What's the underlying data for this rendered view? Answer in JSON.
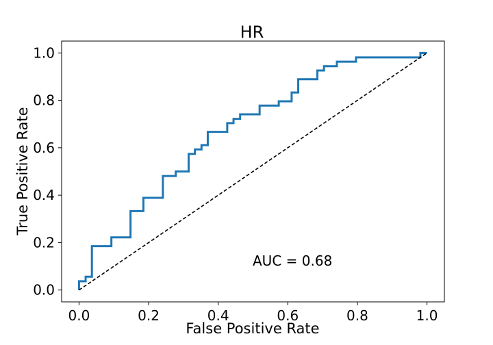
{
  "chart_data": {
    "type": "line",
    "title": "HR",
    "xlabel": "False Positive Rate",
    "ylabel": "True Positive Rate",
    "xlim": [
      -0.05,
      1.05
    ],
    "ylim": [
      -0.05,
      1.05
    ],
    "xticks": [
      0.0,
      0.2,
      0.4,
      0.6,
      0.8,
      1.0
    ],
    "xtick_labels": [
      "0.0",
      "0.2",
      "0.4",
      "0.6",
      "0.8",
      "1.0"
    ],
    "yticks": [
      0.0,
      0.2,
      0.4,
      0.6,
      0.8,
      1.0
    ],
    "ytick_labels": [
      "0.0",
      "0.2",
      "0.4",
      "0.6",
      "0.8",
      "1.0"
    ],
    "grid": false,
    "annotation": {
      "text": "AUC = 0.68",
      "x": 0.5,
      "y": 0.1
    },
    "series": [
      {
        "style": "step",
        "color": "#1f77b4",
        "x": [
          0.0,
          0.0,
          0.019,
          0.019,
          0.037,
          0.037,
          0.093,
          0.093,
          0.148,
          0.148,
          0.185,
          0.185,
          0.241,
          0.241,
          0.278,
          0.278,
          0.315,
          0.315,
          0.333,
          0.333,
          0.352,
          0.352,
          0.37,
          0.37,
          0.426,
          0.426,
          0.444,
          0.444,
          0.463,
          0.463,
          0.519,
          0.519,
          0.574,
          0.574,
          0.611,
          0.611,
          0.63,
          0.63,
          0.685,
          0.685,
          0.704,
          0.704,
          0.741,
          0.741,
          0.796,
          0.796,
          0.981,
          0.981,
          1.0
        ],
        "y": [
          0.0,
          0.037,
          0.037,
          0.056,
          0.056,
          0.185,
          0.185,
          0.222,
          0.222,
          0.333,
          0.333,
          0.389,
          0.389,
          0.481,
          0.481,
          0.5,
          0.5,
          0.574,
          0.574,
          0.593,
          0.593,
          0.611,
          0.611,
          0.667,
          0.667,
          0.704,
          0.704,
          0.722,
          0.722,
          0.741,
          0.741,
          0.778,
          0.778,
          0.796,
          0.796,
          0.833,
          0.833,
          0.889,
          0.889,
          0.926,
          0.926,
          0.944,
          0.944,
          0.963,
          0.963,
          0.981,
          0.981,
          1.0,
          1.0
        ]
      },
      {
        "style": "dashed",
        "color": "#000000",
        "x": [
          0.0,
          1.0
        ],
        "y": [
          0.0,
          1.0
        ]
      }
    ]
  }
}
